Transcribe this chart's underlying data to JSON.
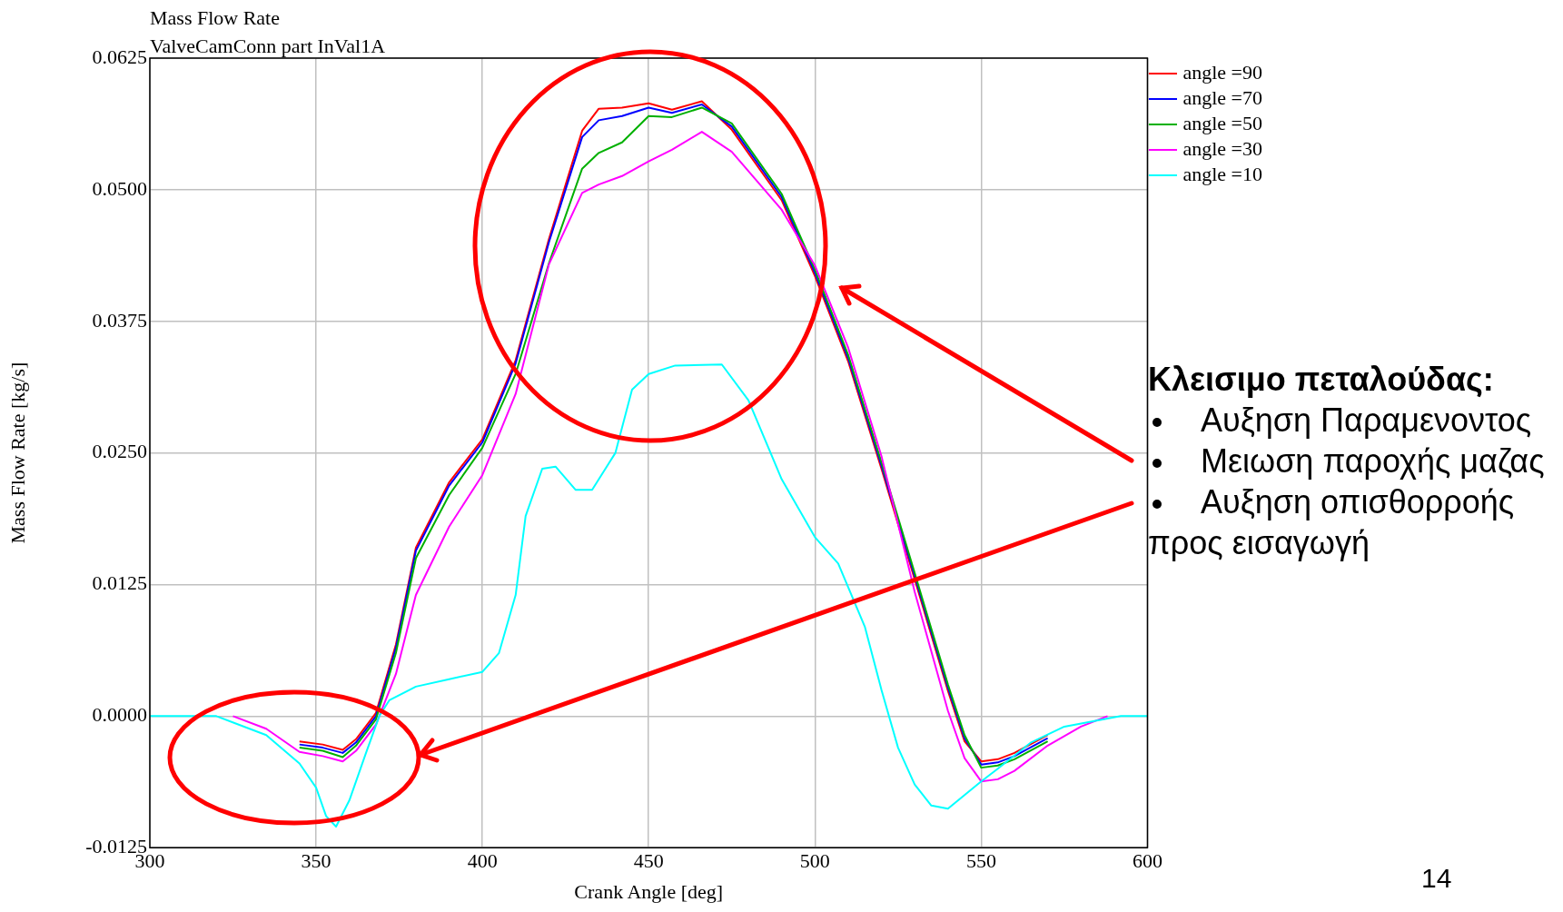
{
  "chart_data": {
    "type": "line",
    "title": "Mass Flow Rate",
    "subtitle": "ValveCamConn part InVal1A",
    "xlabel": "Crank Angle [deg]",
    "ylabel": "Mass Flow Rate [kg/s]",
    "x": [
      345,
      352,
      358,
      362,
      368,
      374,
      380,
      390,
      400,
      410,
      420,
      430,
      435,
      442,
      450,
      457,
      466,
      475,
      490,
      500,
      510,
      520,
      530,
      540,
      545,
      550,
      555,
      560,
      570
    ],
    "series": [
      {
        "name": "angle =90",
        "color": "#ff0000",
        "values": [
          -0.0024,
          -0.0027,
          -0.0032,
          -0.0022,
          0.0003,
          0.0068,
          0.016,
          0.0222,
          0.0263,
          0.0338,
          0.0453,
          0.0556,
          0.0577,
          0.0578,
          0.0582,
          0.0576,
          0.0584,
          0.0557,
          0.049,
          0.0418,
          0.0337,
          0.0235,
          0.013,
          0.0024,
          -0.0024,
          -0.0043,
          -0.0041,
          -0.0035,
          -0.0018
        ]
      },
      {
        "name": "angle =70",
        "color": "#0000ff",
        "values": [
          -0.0027,
          -0.003,
          -0.0035,
          -0.0025,
          0,
          0.0065,
          0.0157,
          0.0219,
          0.026,
          0.0335,
          0.045,
          0.055,
          0.0566,
          0.057,
          0.0578,
          0.0573,
          0.0581,
          0.056,
          0.0493,
          0.0421,
          0.034,
          0.0238,
          0.0133,
          0.0027,
          -0.0021,
          -0.0046,
          -0.0044,
          -0.0038,
          -0.0021
        ]
      },
      {
        "name": "angle =50",
        "color": "#00b000",
        "values": [
          -0.003,
          -0.0033,
          -0.0039,
          -0.0028,
          -0.0003,
          0.006,
          0.015,
          0.021,
          0.0255,
          0.0325,
          0.043,
          0.052,
          0.0535,
          0.0545,
          0.057,
          0.0569,
          0.0578,
          0.0563,
          0.0496,
          0.0424,
          0.0343,
          0.0241,
          0.0136,
          0.003,
          -0.0018,
          -0.0049,
          -0.0047,
          -0.0041,
          -0.0024
        ]
      },
      {
        "name": "angle =30",
        "color": "#ff00ff",
        "x": [
          325,
          335,
          345,
          352,
          358,
          362,
          368,
          374,
          380,
          390,
          400,
          410,
          420,
          430,
          435,
          442,
          450,
          457,
          466,
          475,
          490,
          500,
          510,
          520,
          530,
          540,
          545,
          550,
          555,
          560,
          570,
          580,
          588
        ],
        "values": [
          0,
          -0.0012,
          -0.0034,
          -0.0038,
          -0.0043,
          -0.0033,
          -0.0008,
          0.004,
          0.0115,
          0.018,
          0.0229,
          0.0306,
          0.0429,
          0.0497,
          0.0505,
          0.0513,
          0.0527,
          0.0538,
          0.0555,
          0.0536,
          0.0481,
          0.0428,
          0.035,
          0.0247,
          0.0118,
          0.0005,
          -0.004,
          -0.0062,
          -0.006,
          -0.0052,
          -0.0028,
          -0.001,
          0
        ]
      },
      {
        "name": "angle =10",
        "color": "#00ffff",
        "x": [
          300,
          320,
          335,
          345,
          350,
          353,
          356,
          360,
          365,
          369,
          372,
          380,
          390,
          400,
          405,
          410,
          413,
          418,
          422,
          428,
          433,
          440,
          445,
          450,
          458,
          472,
          480,
          490,
          500,
          507,
          515,
          520,
          525,
          530,
          535,
          540,
          545,
          550,
          555,
          565,
          575,
          592,
          600
        ],
        "values": [
          0,
          0,
          -0.0018,
          -0.0045,
          -0.0068,
          -0.0095,
          -0.0105,
          -0.008,
          -0.0035,
          0,
          0.0015,
          0.0028,
          0.0035,
          0.0042,
          0.006,
          0.0115,
          0.019,
          0.0235,
          0.0237,
          0.0215,
          0.0215,
          0.025,
          0.031,
          0.0325,
          0.0333,
          0.0334,
          0.03,
          0.0225,
          0.017,
          0.0145,
          0.0085,
          0.0025,
          -0.003,
          -0.0065,
          -0.0085,
          -0.0088,
          -0.0075,
          -0.0062,
          -0.005,
          -0.0025,
          -0.001,
          0,
          0
        ]
      }
    ],
    "xlim": [
      300,
      600
    ],
    "xticks": [
      300,
      350,
      400,
      450,
      500,
      550,
      600
    ],
    "ylim": [
      -0.0125,
      0.0625
    ],
    "yticks": [
      {
        "value": -0.0125,
        "label": "-0.0125"
      },
      {
        "value": 0,
        "label": "0.0000"
      },
      {
        "value": 0.0125,
        "label": "0.0125"
      },
      {
        "value": 0.025,
        "label": "0.0250"
      },
      {
        "value": 0.0375,
        "label": "0.0375"
      },
      {
        "value": 0.05,
        "label": "0.0500"
      },
      {
        "value": 0.0625,
        "label": "0.0625"
      }
    ],
    "grid": true,
    "legend": "top right",
    "marker": "none",
    "line_style": "solid",
    "annotations": [
      "Κλεισιμο πεταλούδας:",
      "Αυξηση Παραμενοντος",
      "Μειωση παροχής μαζας",
      "Αυξηση οπισθορροής προς εισαγωγή",
      "14"
    ]
  }
}
